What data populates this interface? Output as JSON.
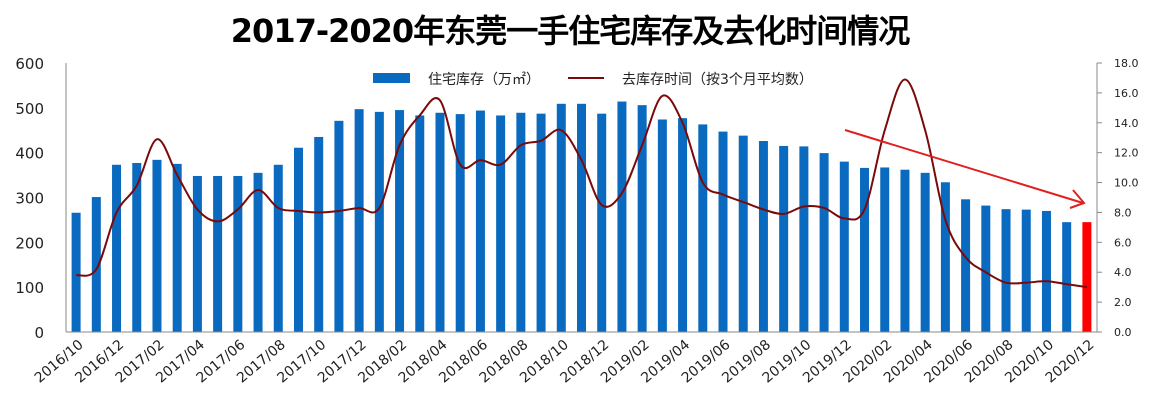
{
  "chart_data": {
    "type": "bar+line",
    "title": "2017-2020年东莞一手住宅库存及去化时间情况",
    "xlabel": "",
    "ylabel": "住宅库存（万㎡）",
    "y2label": "去库存时间（按3个月平均数）",
    "ylim": [
      0,
      600
    ],
    "y2lim": [
      0,
      18
    ],
    "yticks": [
      "0",
      "100",
      "200",
      "300",
      "400",
      "500",
      "600"
    ],
    "y2ticks": [
      "0.0",
      "2.0",
      "4.0",
      "6.0",
      "8.0",
      "10.0",
      "12.0",
      "14.0",
      "16.0",
      "18.0"
    ],
    "grid": false,
    "legend_position": "top-center",
    "x_tick_labels": [
      "2016/10",
      "2016/12",
      "2017/02",
      "2017/04",
      "2017/06",
      "2017/08",
      "2017/10",
      "2017/12",
      "2018/02",
      "2018/04",
      "2018/06",
      "2018/08",
      "2018/10",
      "2018/12",
      "2019/02",
      "2019/04",
      "2019/06",
      "2019/08",
      "2019/10",
      "2019/12",
      "2020/02",
      "2020/04",
      "2020/06",
      "2020/08",
      "2020/10",
      "2020/12"
    ],
    "categories": [
      "2016/10",
      "2016/11",
      "2016/12",
      "2017/01",
      "2017/02",
      "2017/03",
      "2017/04",
      "2017/05",
      "2017/06",
      "2017/07",
      "2017/08",
      "2017/09",
      "2017/10",
      "2017/11",
      "2017/12",
      "2018/01",
      "2018/02",
      "2018/03",
      "2018/04",
      "2018/05",
      "2018/06",
      "2018/07",
      "2018/08",
      "2018/09",
      "2018/10",
      "2018/11",
      "2018/12",
      "2019/01",
      "2019/02",
      "2019/03",
      "2019/04",
      "2019/05",
      "2019/06",
      "2019/07",
      "2019/08",
      "2019/09",
      "2019/10",
      "2019/11",
      "2019/12",
      "2020/01",
      "2020/02",
      "2020/03",
      "2020/04",
      "2020/05",
      "2020/06",
      "2020/07",
      "2020/08",
      "2020/09",
      "2020/10",
      "2020/11",
      "2020/12"
    ],
    "series": [
      {
        "name": "住宅库存（万㎡）",
        "type": "bar",
        "axis": "left",
        "color": "#0a6abf",
        "highlight_last_color": "#ff0000",
        "values": [
          266,
          301,
          373,
          377,
          384,
          375,
          348,
          348,
          348,
          355,
          373,
          411,
          435,
          471,
          497,
          491,
          495,
          483,
          489,
          486,
          494,
          483,
          489,
          487,
          509,
          509,
          487,
          514,
          506,
          474,
          477,
          463,
          447,
          438,
          426,
          415,
          414,
          399,
          380,
          366,
          367,
          362,
          355,
          334,
          296,
          282,
          274,
          273,
          270,
          245,
          245
        ]
      },
      {
        "name": "去库存时间（按3个月平均数）",
        "type": "line",
        "axis": "right",
        "color": "#7a0a0a",
        "values": [
          3.8,
          4.2,
          8.0,
          9.8,
          12.9,
          10.5,
          8.2,
          7.4,
          8.2,
          9.5,
          8.3,
          8.1,
          8.0,
          8.1,
          8.3,
          8.3,
          12.5,
          14.5,
          15.5,
          11.2,
          11.5,
          11.2,
          12.5,
          12.8,
          13.5,
          11.5,
          8.5,
          9.3,
          12.5,
          15.8,
          14.0,
          10.0,
          9.2,
          8.7,
          8.2,
          7.9,
          8.4,
          8.3,
          7.6,
          8.2,
          13.5,
          16.9,
          13.5,
          7.5,
          5.0,
          4.0,
          3.3,
          3.3,
          3.4,
          3.2,
          3.0
        ]
      }
    ],
    "annotations": [
      {
        "type": "trend-arrow",
        "color": "#e02020",
        "from_category": "2019/12",
        "to_category": "2020/12",
        "meaning": "downward trend"
      }
    ]
  },
  "legend": {
    "bar_label": "住宅库存（万㎡）",
    "line_label": "去库存时间（按3个月平均数）"
  },
  "colors": {
    "bar": "#0a6abf",
    "bar_highlight": "#ff0000",
    "line": "#7a0a0a",
    "arrow": "#e02020",
    "axis": "#888888"
  }
}
